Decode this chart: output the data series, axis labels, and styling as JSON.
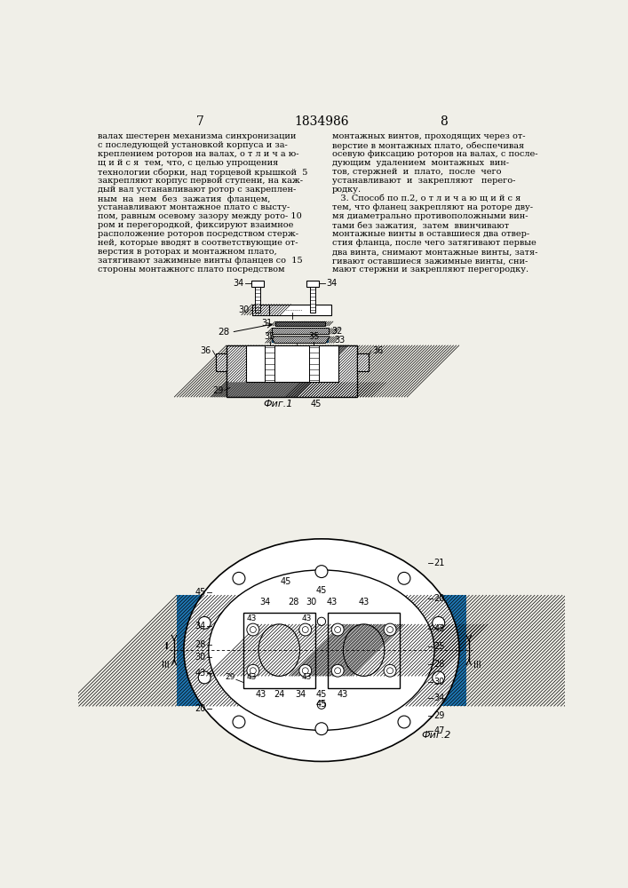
{
  "bg_color": "#f0efe8",
  "page_left": "7",
  "page_center": "1834986",
  "page_right": "8",
  "text_left": [
    "валах шестерен механизма синхронизации",
    "с последующей установкой корпуса и за-",
    "креплением роторов на валах, о т л и ч а ю-",
    "щ и й с я  тем, что, с целью упрощения",
    "технологии сборки, над торцевой крышкой  5",
    "закрепляют корпус первой ступени, на каж-",
    "дый вал устанавливают ротор с закреплен-",
    "ным  на  нем  без  зажатия  фланцем,",
    "устанавливают монтажное плато с высту-",
    "пом, равным осевому зазору между рото- 10",
    "ром и перегородкой, фиксируют взаимное",
    "расположение роторов посредством стерж-",
    "ней, которые вводят в соответствующие от-",
    "верстия в роторах и монтажном плато,",
    "затягивают зажимные винты фланцев со  15",
    "стороны монтажногс плато посредством"
  ],
  "text_right": [
    "монтажных винтов, проходящих через от-",
    "верстие в монтажных плато, обеспечивая",
    "осевую фиксацию роторов на валах, с после-",
    "дующим  удалением  монтажных  вин-",
    "тов, стержней  и  плато,  после  чего",
    "устанавливают  и  закрепляют   перего-",
    "родку.",
    "   3. Способ по п.2, о т л и ч а ю щ и й с я",
    "тем, что фланец закрепляют на роторе дву-",
    "мя диаметрально противоположными вин-",
    "тами без зажатия,  затем  ввинчивают",
    "монтажные винты в оставшиеся два отвер-",
    "стия фланца, после чего затягивают первые",
    "два винта, снимают монтажные винты, затя-",
    "гивают оставшиеся зажимные винты, сни-",
    "мают стержни и закрепляют перегородку."
  ],
  "fig1_label": "Фиг.1",
  "fig2_label": "Фиг.2"
}
